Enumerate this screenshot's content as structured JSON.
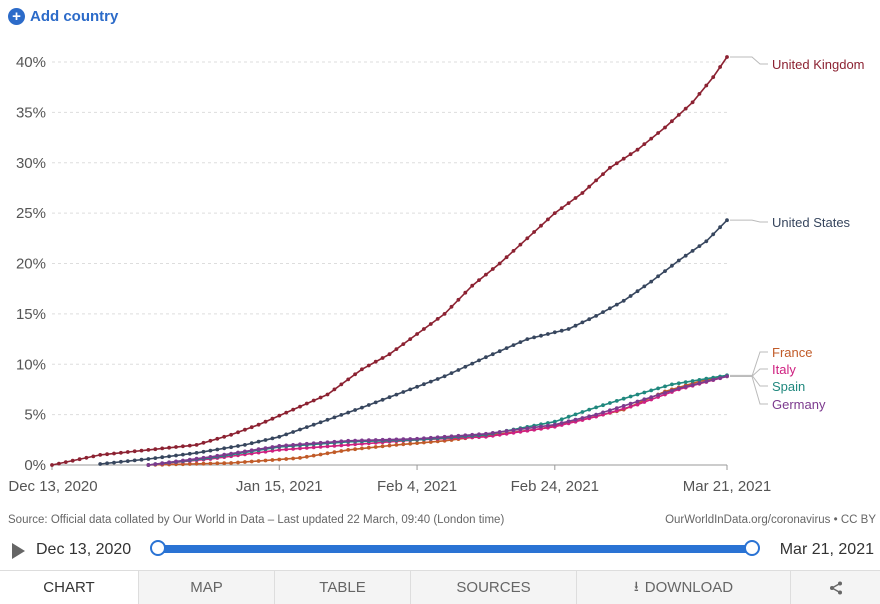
{
  "header": {
    "add_country_label": "Add country"
  },
  "chart_data": {
    "type": "line",
    "y_ticks": [
      "0%",
      "5%",
      "10%",
      "15%",
      "20%",
      "25%",
      "30%",
      "35%",
      "40%"
    ],
    "x_ticks": [
      "Dec 13, 2020",
      "Jan 15, 2021",
      "Feb 4, 2021",
      "Feb 24, 2021",
      "Mar 21, 2021"
    ],
    "x_tick_dates": [
      "2020-12-13",
      "2021-01-15",
      "2021-02-04",
      "2021-02-24",
      "2021-03-21"
    ],
    "xlim": [
      "2020-12-13",
      "2021-03-21"
    ],
    "ylim": [
      0,
      40
    ],
    "grid": "horizontal dashed",
    "series": [
      {
        "name": "United Kingdom",
        "color": "#8c2232",
        "points": [
          [
            "2020-12-13",
            0
          ],
          [
            "2020-12-20",
            1
          ],
          [
            "2020-12-27",
            1.5
          ],
          [
            "2021-01-03",
            2
          ],
          [
            "2021-01-08",
            3
          ],
          [
            "2021-01-12",
            4
          ],
          [
            "2021-01-17",
            5.5
          ],
          [
            "2021-01-22",
            7
          ],
          [
            "2021-01-27",
            9.5
          ],
          [
            "2021-01-31",
            11
          ],
          [
            "2021-02-04",
            13
          ],
          [
            "2021-02-08",
            15
          ],
          [
            "2021-02-12",
            17.8
          ],
          [
            "2021-02-16",
            20
          ],
          [
            "2021-02-20",
            22.5
          ],
          [
            "2021-02-24",
            25
          ],
          [
            "2021-02-28",
            27
          ],
          [
            "2021-03-04",
            29.5
          ],
          [
            "2021-03-08",
            31.3
          ],
          [
            "2021-03-12",
            33.5
          ],
          [
            "2021-03-16",
            36
          ],
          [
            "2021-03-19",
            38.5
          ],
          [
            "2021-03-21",
            40.5
          ]
        ]
      },
      {
        "name": "United States",
        "color": "#37465e",
        "points": [
          [
            "2020-12-20",
            0.1
          ],
          [
            "2020-12-27",
            0.6
          ],
          [
            "2021-01-03",
            1.2
          ],
          [
            "2021-01-10",
            2
          ],
          [
            "2021-01-15",
            2.8
          ],
          [
            "2021-01-20",
            4
          ],
          [
            "2021-01-27",
            5.7
          ],
          [
            "2021-02-03",
            7.5
          ],
          [
            "2021-02-08",
            8.8
          ],
          [
            "2021-02-14",
            10.7
          ],
          [
            "2021-02-20",
            12.5
          ],
          [
            "2021-02-26",
            13.5
          ],
          [
            "2021-03-02",
            14.8
          ],
          [
            "2021-03-06",
            16.3
          ],
          [
            "2021-03-10",
            18.2
          ],
          [
            "2021-03-14",
            20.3
          ],
          [
            "2021-03-18",
            22.2
          ],
          [
            "2021-03-21",
            24.3
          ]
        ]
      },
      {
        "name": "France",
        "color": "#c15b28",
        "points": [
          [
            "2020-12-27",
            0
          ],
          [
            "2021-01-08",
            0.2
          ],
          [
            "2021-01-18",
            0.7
          ],
          [
            "2021-01-25",
            1.5
          ],
          [
            "2021-02-01",
            2
          ],
          [
            "2021-02-08",
            2.4
          ],
          [
            "2021-02-15",
            3
          ],
          [
            "2021-02-22",
            3.6
          ],
          [
            "2021-02-28",
            4.5
          ],
          [
            "2021-03-06",
            5.5
          ],
          [
            "2021-03-12",
            7.3
          ],
          [
            "2021-03-17",
            8.3
          ],
          [
            "2021-03-21",
            8.8
          ]
        ]
      },
      {
        "name": "Italy",
        "color": "#cf2080",
        "points": [
          [
            "2020-12-27",
            0
          ],
          [
            "2021-01-05",
            0.6
          ],
          [
            "2021-01-15",
            1.5
          ],
          [
            "2021-01-25",
            2
          ],
          [
            "2021-02-04",
            2.5
          ],
          [
            "2021-02-14",
            2.8
          ],
          [
            "2021-02-24",
            3.8
          ],
          [
            "2021-03-02",
            4.8
          ],
          [
            "2021-03-08",
            6
          ],
          [
            "2021-03-14",
            7.5
          ],
          [
            "2021-03-21",
            8.8
          ]
        ]
      },
      {
        "name": "Spain",
        "color": "#20887e",
        "points": [
          [
            "2020-12-27",
            0
          ],
          [
            "2021-01-05",
            0.7
          ],
          [
            "2021-01-15",
            1.8
          ],
          [
            "2021-01-25",
            2.3
          ],
          [
            "2021-02-04",
            2.5
          ],
          [
            "2021-02-14",
            3
          ],
          [
            "2021-02-24",
            4.3
          ],
          [
            "2021-03-01",
            5.5
          ],
          [
            "2021-03-07",
            6.8
          ],
          [
            "2021-03-13",
            8
          ],
          [
            "2021-03-21",
            8.9
          ]
        ]
      },
      {
        "name": "Germany",
        "color": "#7c3a8e",
        "points": [
          [
            "2020-12-27",
            0
          ],
          [
            "2021-01-05",
            0.8
          ],
          [
            "2021-01-15",
            1.9
          ],
          [
            "2021-01-25",
            2.4
          ],
          [
            "2021-02-04",
            2.6
          ],
          [
            "2021-02-14",
            3.1
          ],
          [
            "2021-02-24",
            4
          ],
          [
            "2021-03-02",
            5
          ],
          [
            "2021-03-08",
            6.3
          ],
          [
            "2021-03-14",
            7.6
          ],
          [
            "2021-03-21",
            8.8
          ]
        ]
      }
    ]
  },
  "footer": {
    "source": "Source: Official data collated by Our World in Data – Last updated 22 March, 09:40 (London time)",
    "site": "OurWorldInData.org/coronavirus • CC BY"
  },
  "timeline": {
    "start": "Dec 13, 2020",
    "end": "Mar 21, 2021"
  },
  "tabs": {
    "chart": "CHART",
    "map": "MAP",
    "table": "TABLE",
    "sources": "SOURCES",
    "download": "DOWNLOAD"
  }
}
